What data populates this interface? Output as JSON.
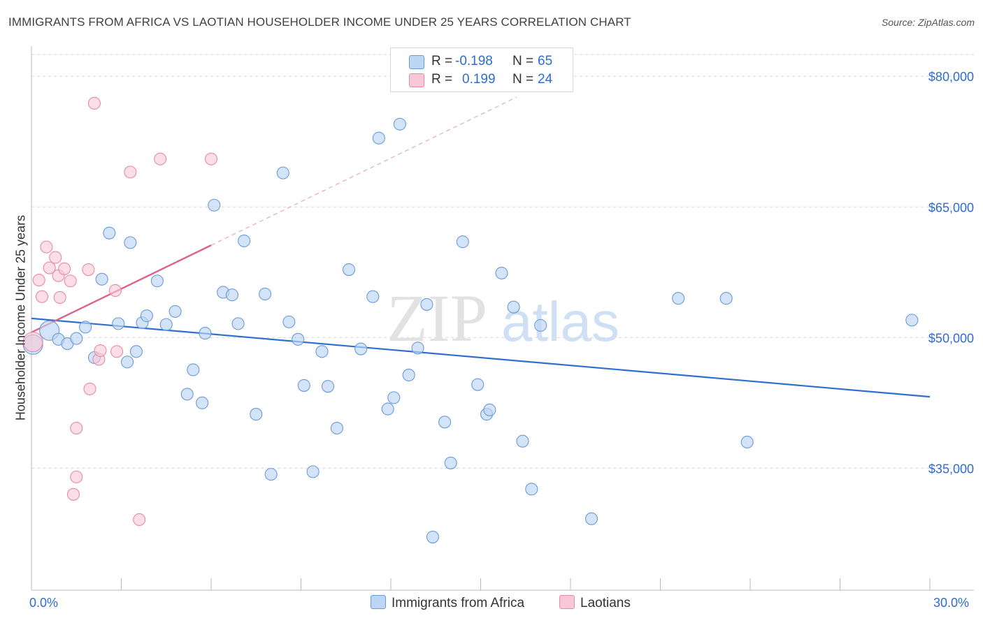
{
  "title": "IMMIGRANTS FROM AFRICA VS LAOTIAN HOUSEHOLDER INCOME UNDER 25 YEARS CORRELATION CHART",
  "source": "Source: ZipAtlas.com",
  "watermark": {
    "zip": "ZIP",
    "atlas": "atlas"
  },
  "legend": {
    "r_label": "R =",
    "n_label": "N =",
    "africa": {
      "r": "-0.198",
      "n": "65"
    },
    "laotians": {
      "r": "0.199",
      "n": "24"
    }
  },
  "colors": {
    "africa_fill": "#bdd6f5",
    "africa_stroke": "#6a9ad8",
    "africa_line": "#2f6fd0",
    "laotian_fill": "#f8c8d6",
    "laotian_stroke": "#e58aa8",
    "laotian_line": "#e0608c",
    "accent_text": "#2f6bd0",
    "grid": "#d6d6d6"
  },
  "chart_data": {
    "type": "scatter",
    "title": "IMMIGRANTS FROM AFRICA VS LAOTIAN HOUSEHOLDER INCOME UNDER 25 YEARS CORRELATION CHART",
    "xlabel": "",
    "ylabel": "Householder Income Under 25 years",
    "xlim": [
      0,
      30
    ],
    "ylim": [
      21000,
      82500
    ],
    "x_tick_labels": [
      "0.0%",
      "30.0%"
    ],
    "y_ticks": [
      35000,
      50000,
      65000,
      80000
    ],
    "y_tick_labels": [
      "$35,000",
      "$50,000",
      "$65,000",
      "$80,000"
    ],
    "grid": true,
    "series": [
      {
        "name": "Immigrants from Africa",
        "r": -0.198,
        "n": 65,
        "trend": {
          "x": [
            0,
            30
          ],
          "y": [
            52200,
            43200
          ]
        },
        "points": [
          {
            "x": 0.05,
            "y": 49200,
            "big": true
          },
          {
            "x": 0.6,
            "y": 50800,
            "big": true
          },
          {
            "x": 0.9,
            "y": 49800
          },
          {
            "x": 1.2,
            "y": 49300
          },
          {
            "x": 1.5,
            "y": 49900
          },
          {
            "x": 1.8,
            "y": 51200
          },
          {
            "x": 2.1,
            "y": 47700
          },
          {
            "x": 2.35,
            "y": 56700
          },
          {
            "x": 2.6,
            "y": 62000
          },
          {
            "x": 2.9,
            "y": 51600
          },
          {
            "x": 3.2,
            "y": 47200
          },
          {
            "x": 3.5,
            "y": 48400
          },
          {
            "x": 3.7,
            "y": 51700
          },
          {
            "x": 3.85,
            "y": 52500
          },
          {
            "x": 4.2,
            "y": 56500
          },
          {
            "x": 4.5,
            "y": 51500
          },
          {
            "x": 4.8,
            "y": 53000
          },
          {
            "x": 5.2,
            "y": 43500
          },
          {
            "x": 5.4,
            "y": 46300
          },
          {
            "x": 5.7,
            "y": 42500
          },
          {
            "x": 5.8,
            "y": 50500
          },
          {
            "x": 6.1,
            "y": 65200
          },
          {
            "x": 6.4,
            "y": 55200
          },
          {
            "x": 6.7,
            "y": 54900
          },
          {
            "x": 6.9,
            "y": 51600
          },
          {
            "x": 7.1,
            "y": 61100
          },
          {
            "x": 7.5,
            "y": 41200
          },
          {
            "x": 7.8,
            "y": 55000
          },
          {
            "x": 8.0,
            "y": 34300
          },
          {
            "x": 8.4,
            "y": 68900
          },
          {
            "x": 8.6,
            "y": 51800
          },
          {
            "x": 8.9,
            "y": 49800
          },
          {
            "x": 9.1,
            "y": 44500
          },
          {
            "x": 9.4,
            "y": 34600
          },
          {
            "x": 9.7,
            "y": 48400
          },
          {
            "x": 9.9,
            "y": 44400
          },
          {
            "x": 10.2,
            "y": 39600
          },
          {
            "x": 10.6,
            "y": 57800
          },
          {
            "x": 11.0,
            "y": 48700
          },
          {
            "x": 11.4,
            "y": 54700
          },
          {
            "x": 11.6,
            "y": 72900
          },
          {
            "x": 11.9,
            "y": 41800
          },
          {
            "x": 12.1,
            "y": 43100
          },
          {
            "x": 12.3,
            "y": 74500
          },
          {
            "x": 12.6,
            "y": 45700
          },
          {
            "x": 12.9,
            "y": 48800
          },
          {
            "x": 13.2,
            "y": 53800
          },
          {
            "x": 13.8,
            "y": 40300
          },
          {
            "x": 14.0,
            "y": 35600
          },
          {
            "x": 13.4,
            "y": 27100
          },
          {
            "x": 14.4,
            "y": 61000
          },
          {
            "x": 14.9,
            "y": 44600
          },
          {
            "x": 15.2,
            "y": 41200
          },
          {
            "x": 15.3,
            "y": 41700
          },
          {
            "x": 15.7,
            "y": 57400
          },
          {
            "x": 16.1,
            "y": 53500
          },
          {
            "x": 16.4,
            "y": 38100
          },
          {
            "x": 16.7,
            "y": 32600
          },
          {
            "x": 17.0,
            "y": 51400
          },
          {
            "x": 18.7,
            "y": 29200
          },
          {
            "x": 21.6,
            "y": 54500
          },
          {
            "x": 23.2,
            "y": 54500
          },
          {
            "x": 23.9,
            "y": 38000
          },
          {
            "x": 29.4,
            "y": 52000
          },
          {
            "x": 3.3,
            "y": 60900
          }
        ]
      },
      {
        "name": "Laotians",
        "r": 0.199,
        "n": 24,
        "trend": {
          "x": [
            0,
            6.0
          ],
          "y": [
            50600,
            60600
          ]
        },
        "trend_dashed": {
          "x": [
            6.0,
            16.2
          ],
          "y": [
            60600,
            77600
          ]
        },
        "points": [
          {
            "x": 0.05,
            "y": 49500,
            "big": true
          },
          {
            "x": 0.25,
            "y": 56600
          },
          {
            "x": 0.35,
            "y": 54700
          },
          {
            "x": 0.5,
            "y": 60400
          },
          {
            "x": 0.6,
            "y": 58000
          },
          {
            "x": 0.8,
            "y": 59200
          },
          {
            "x": 0.9,
            "y": 57100
          },
          {
            "x": 0.95,
            "y": 54600
          },
          {
            "x": 1.1,
            "y": 57900
          },
          {
            "x": 1.3,
            "y": 56500
          },
          {
            "x": 1.5,
            "y": 39600
          },
          {
            "x": 1.4,
            "y": 32000
          },
          {
            "x": 1.5,
            "y": 34000
          },
          {
            "x": 1.9,
            "y": 57800
          },
          {
            "x": 1.95,
            "y": 44100
          },
          {
            "x": 2.1,
            "y": 76900
          },
          {
            "x": 2.25,
            "y": 47500
          },
          {
            "x": 2.3,
            "y": 48500
          },
          {
            "x": 2.85,
            "y": 48400
          },
          {
            "x": 2.8,
            "y": 55400
          },
          {
            "x": 3.3,
            "y": 69000
          },
          {
            "x": 3.6,
            "y": 29100
          },
          {
            "x": 4.3,
            "y": 70500
          },
          {
            "x": 6.0,
            "y": 70500
          }
        ]
      }
    ]
  },
  "bottom_legend": {
    "africa": "Immigrants from Africa",
    "laotians": "Laotians"
  }
}
